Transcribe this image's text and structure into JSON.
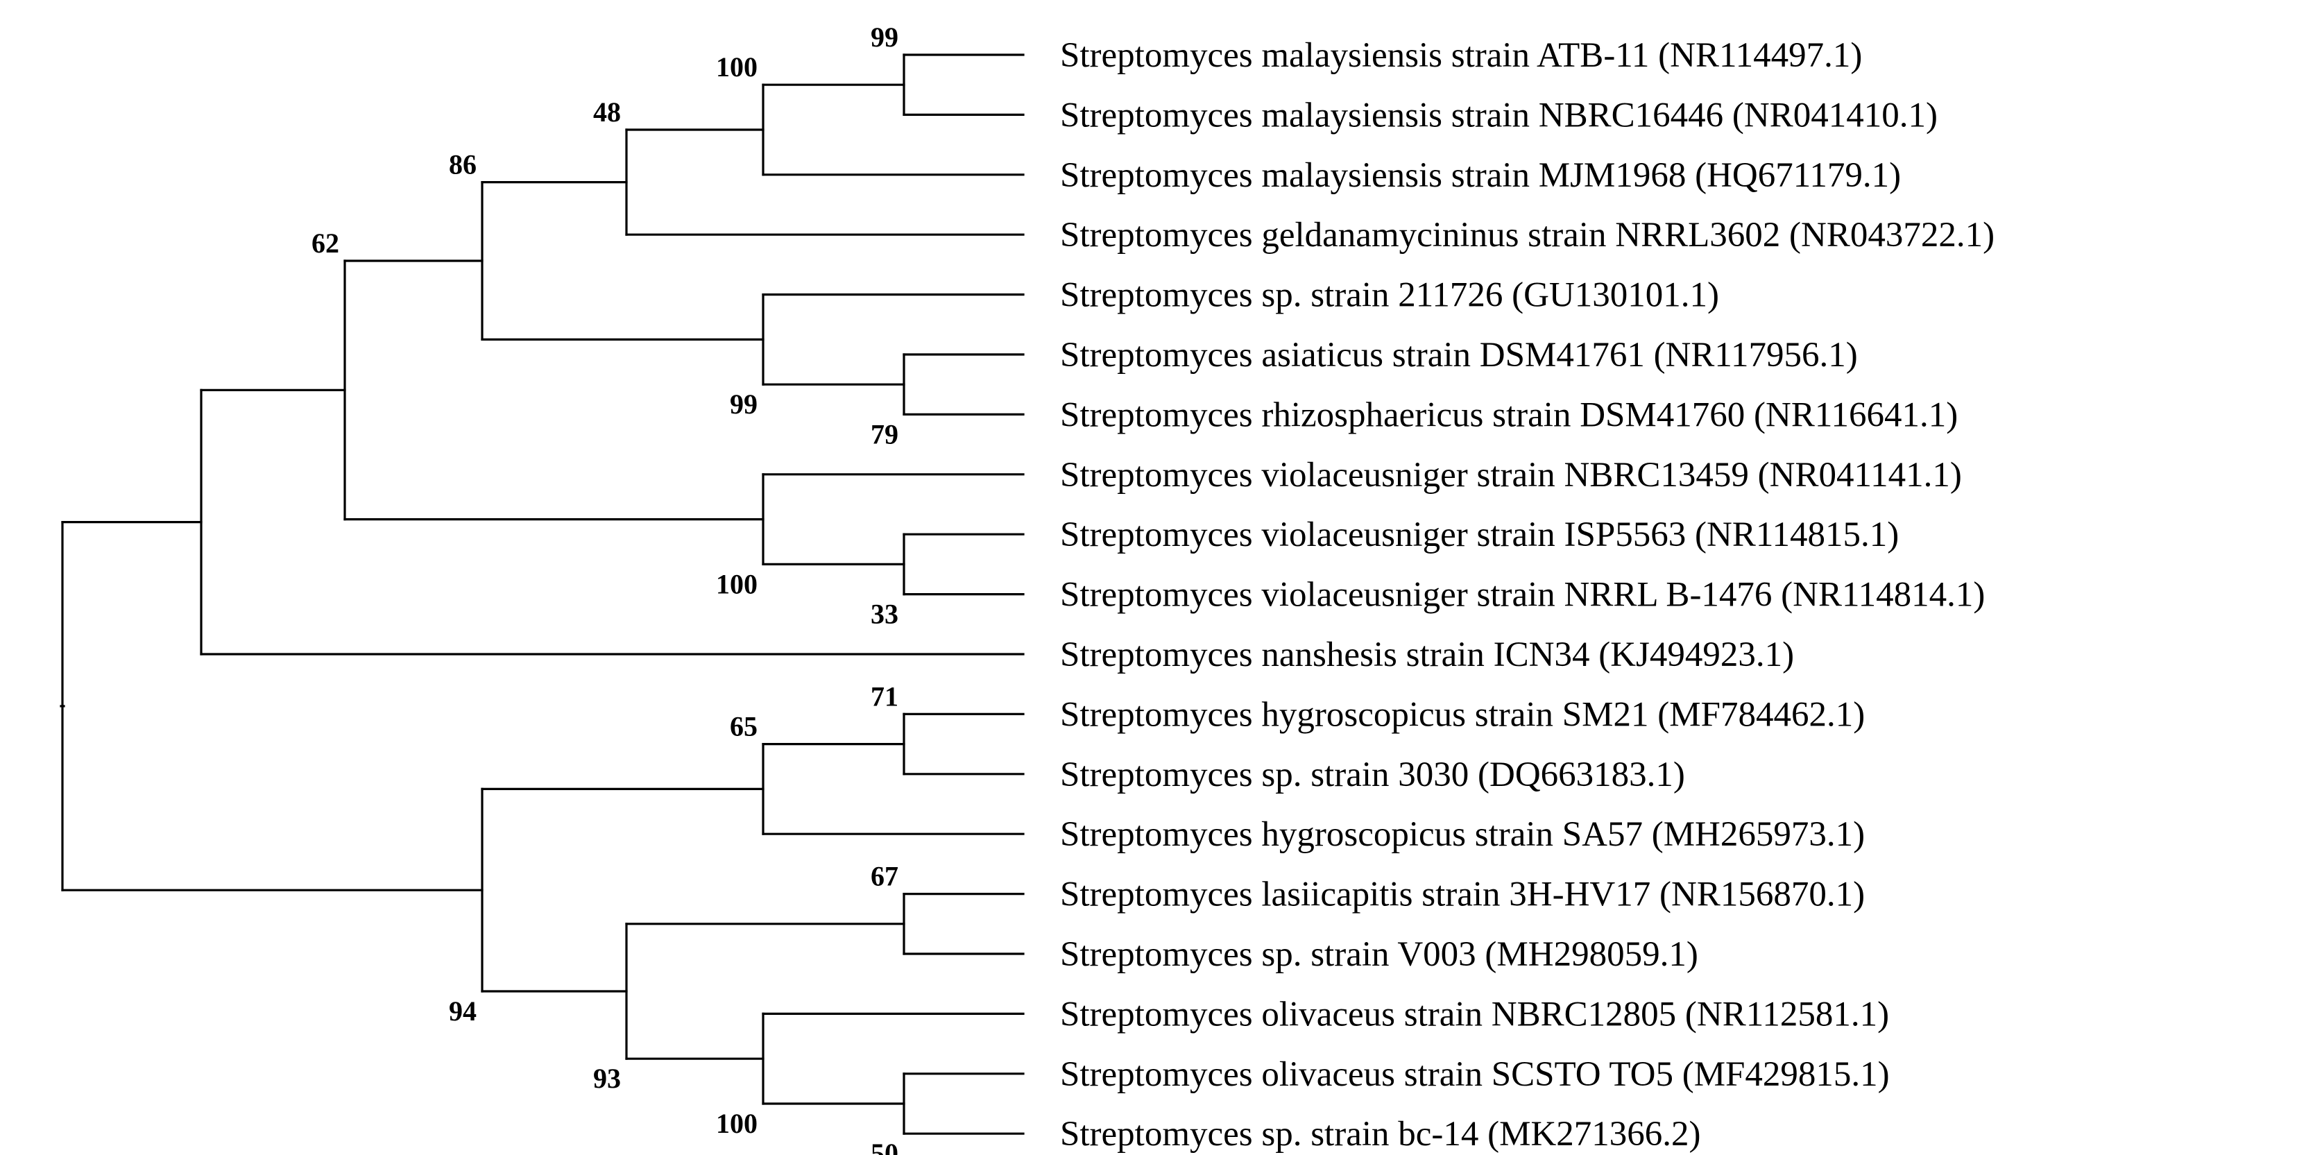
{
  "taxa": [
    "Streptomyces malaysiensis strain ATB-11 (NR114497.1)",
    "Streptomyces malaysiensis strain NBRC16446 (NR041410.1)",
    "Streptomyces malaysiensis strain MJM1968 (HQ671179.1)",
    "Streptomyces geldanamycininus strain NRRL3602 (NR043722.1)",
    "Streptomyces sp. strain 211726 (GU130101.1)",
    "Streptomyces asiaticus strain DSM41761 (NR117956.1)",
    "Streptomyces rhizosphaericus strain DSM41760 (NR116641.1)",
    "Streptomyces violaceusniger strain NBRC13459 (NR041141.1)",
    "Streptomyces violaceusniger strain ISP5563 (NR114815.1)",
    "Streptomyces violaceusniger strain NRRL B-1476 (NR114814.1)",
    "Streptomyces nanshesis strain ICN34 (KJ494923.1)",
    "Streptomyces hygroscopicus strain SM21 (MF784462.1)",
    "Streptomyces sp. strain 3030 (DQ663183.1)",
    "Streptomyces hygroscopicus strain SA57 (MH265973.1)",
    "Streptomyces lasiicapitis strain 3H-HV17 (NR156870.1)",
    "Streptomyces sp. strain V003 (MH298059.1)",
    "Streptomyces olivaceus strain NBRC12805 (NR112581.1)",
    "Streptomyces olivaceus strain SCSTO TO5 (MF429815.1)",
    "Streptomyces sp. strain bc-14 (MK271366.2)"
  ],
  "support_values": {
    "n_atb_nbrc": "99",
    "n_malaysiensis": "100",
    "n_geldanamycininus": "48",
    "n_upper": "86",
    "n_asia_rhizo": "79",
    "n_sp211726": "99",
    "n_viol_isp_nrrl": "33",
    "n_violaceusniger": "100",
    "n_62": "62",
    "n_sm21_3030": "71",
    "n_hygroscopicus": "65",
    "n_lasi_v003": "67",
    "n_scsto_bc14": "50",
    "n_olivaceus": "100",
    "n_lower": "93",
    "n_94": "94"
  },
  "colors": {
    "line": "#000000",
    "background": "#ffffff"
  }
}
